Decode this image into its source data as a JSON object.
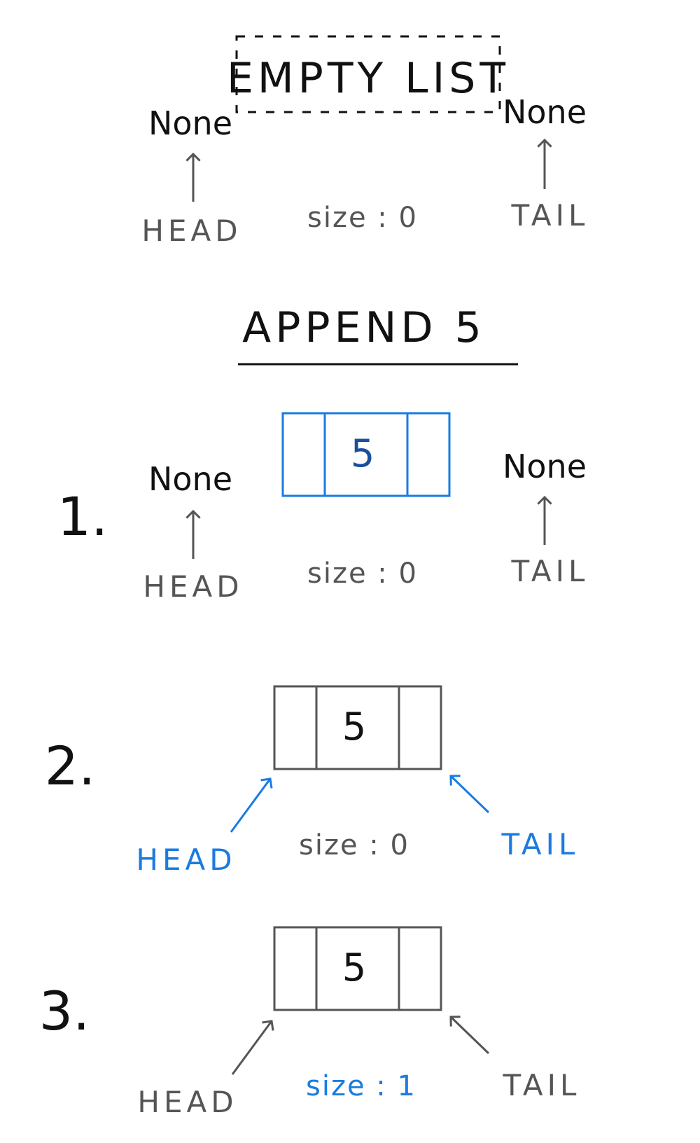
{
  "colors": {
    "ink": "#111111",
    "gray": "#555555",
    "blue": "#1a7be0"
  },
  "header": {
    "box_label": "EMPTY LIST"
  },
  "empty": {
    "head_value": "None",
    "tail_value": "None",
    "head_label": "HEAD",
    "tail_label": "TAIL",
    "size_text": "size : 0"
  },
  "operation": {
    "title": "APPEND 5"
  },
  "steps": [
    {
      "number": "1.",
      "node_value": "5",
      "head_value": "None",
      "tail_value": "None",
      "head_label": "HEAD",
      "tail_label": "TAIL",
      "size_text": "size : 0"
    },
    {
      "number": "2.",
      "node_value": "5",
      "head_label": "HEAD",
      "tail_label": "TAIL",
      "size_text": "size : 0"
    },
    {
      "number": "3.",
      "node_value": "5",
      "head_label": "HEAD",
      "tail_label": "TAIL",
      "size_text": "size : 1"
    }
  ]
}
